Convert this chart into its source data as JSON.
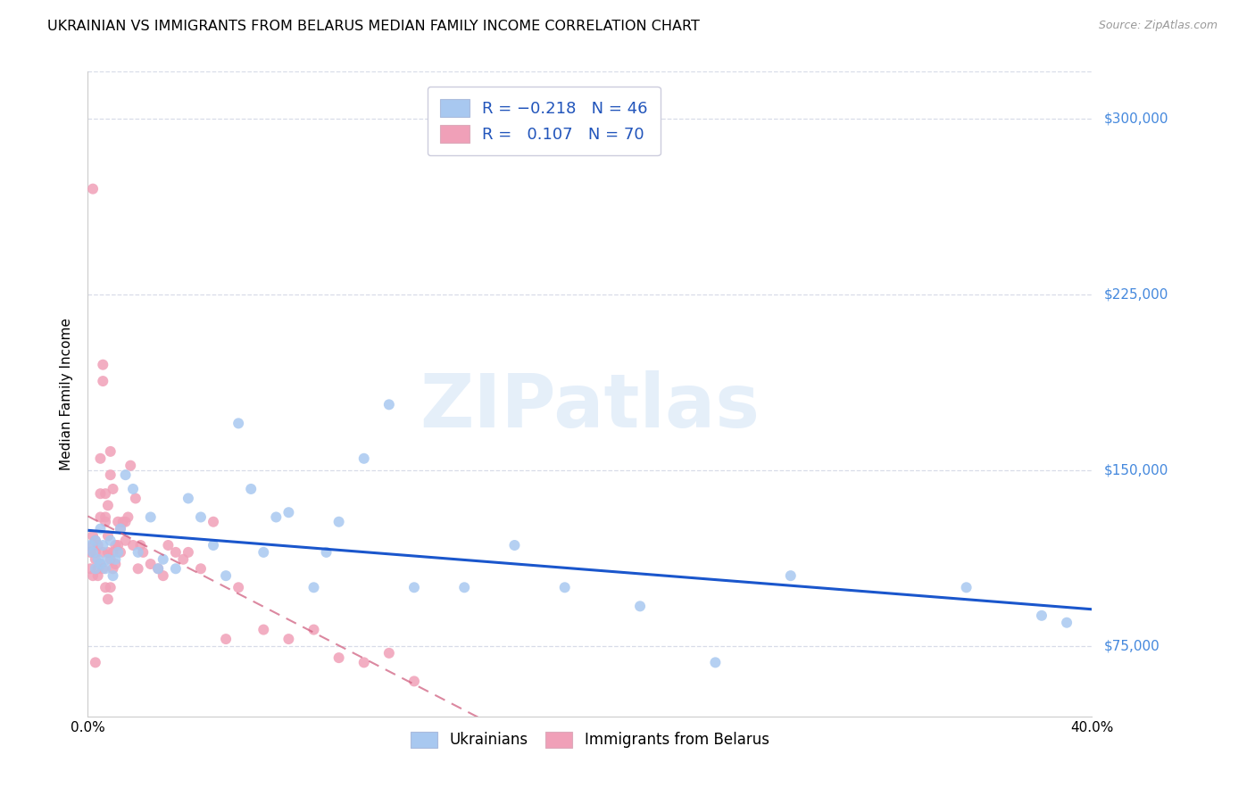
{
  "title": "UKRAINIAN VS IMMIGRANTS FROM BELARUS MEDIAN FAMILY INCOME CORRELATION CHART",
  "source": "Source: ZipAtlas.com",
  "ylabel": "Median Family Income",
  "xlim": [
    0.0,
    0.4
  ],
  "ylim": [
    45000,
    320000
  ],
  "yticks": [
    75000,
    150000,
    225000,
    300000
  ],
  "ytick_labels": [
    "$75,000",
    "$150,000",
    "$225,000",
    "$300,000"
  ],
  "xticks": [
    0.0,
    0.1,
    0.2,
    0.3,
    0.4
  ],
  "xtick_labels": [
    "0.0%",
    "",
    "",
    "",
    "40.0%"
  ],
  "background_color": "#ffffff",
  "grid_color": "#d8dce8",
  "watermark": "ZIPatlas",
  "color_ukrainian": "#a8c8f0",
  "color_belarus": "#f0a0b8",
  "color_line_ukrainian": "#1a56cc",
  "color_line_belarus": "#d06080",
  "title_fontsize": 11.5,
  "axis_label_fontsize": 11,
  "tick_fontsize": 11,
  "ukrainian_x": [
    0.001,
    0.002,
    0.003,
    0.003,
    0.004,
    0.005,
    0.005,
    0.006,
    0.007,
    0.008,
    0.009,
    0.01,
    0.011,
    0.012,
    0.013,
    0.015,
    0.018,
    0.02,
    0.025,
    0.028,
    0.03,
    0.035,
    0.04,
    0.045,
    0.05,
    0.055,
    0.06,
    0.065,
    0.07,
    0.075,
    0.08,
    0.09,
    0.095,
    0.1,
    0.11,
    0.12,
    0.13,
    0.15,
    0.17,
    0.19,
    0.22,
    0.25,
    0.28,
    0.35,
    0.38,
    0.39
  ],
  "ukrainian_y": [
    118000,
    115000,
    108000,
    120000,
    112000,
    110000,
    125000,
    118000,
    108000,
    112000,
    120000,
    105000,
    112000,
    115000,
    125000,
    148000,
    142000,
    115000,
    130000,
    108000,
    112000,
    108000,
    138000,
    130000,
    118000,
    105000,
    170000,
    142000,
    115000,
    130000,
    132000,
    100000,
    115000,
    128000,
    155000,
    178000,
    100000,
    100000,
    118000,
    100000,
    92000,
    68000,
    105000,
    100000,
    88000,
    85000
  ],
  "belarus_x": [
    0.001,
    0.001,
    0.002,
    0.002,
    0.002,
    0.003,
    0.003,
    0.003,
    0.004,
    0.004,
    0.005,
    0.005,
    0.005,
    0.006,
    0.006,
    0.006,
    0.007,
    0.007,
    0.007,
    0.008,
    0.008,
    0.008,
    0.009,
    0.009,
    0.009,
    0.01,
    0.01,
    0.01,
    0.011,
    0.011,
    0.012,
    0.012,
    0.013,
    0.013,
    0.014,
    0.015,
    0.015,
    0.016,
    0.017,
    0.018,
    0.019,
    0.02,
    0.021,
    0.022,
    0.025,
    0.028,
    0.03,
    0.032,
    0.035,
    0.038,
    0.04,
    0.045,
    0.05,
    0.055,
    0.06,
    0.07,
    0.08,
    0.09,
    0.1,
    0.11,
    0.12,
    0.13,
    0.002,
    0.003,
    0.004,
    0.005,
    0.006,
    0.007,
    0.008,
    0.009
  ],
  "belarus_y": [
    115000,
    108000,
    105000,
    118000,
    122000,
    112000,
    120000,
    115000,
    108000,
    118000,
    140000,
    155000,
    130000,
    188000,
    195000,
    108000,
    128000,
    140000,
    130000,
    122000,
    135000,
    115000,
    158000,
    148000,
    112000,
    142000,
    115000,
    108000,
    110000,
    118000,
    118000,
    128000,
    115000,
    125000,
    128000,
    128000,
    120000,
    130000,
    152000,
    118000,
    138000,
    108000,
    118000,
    115000,
    110000,
    108000,
    105000,
    118000,
    115000,
    112000,
    115000,
    108000,
    128000,
    78000,
    100000,
    82000,
    78000,
    82000,
    70000,
    68000,
    72000,
    60000,
    270000,
    68000,
    105000,
    110000,
    115000,
    100000,
    95000,
    100000
  ]
}
